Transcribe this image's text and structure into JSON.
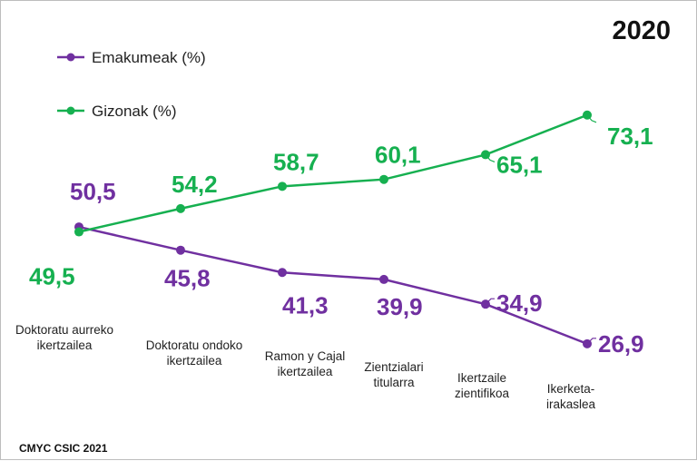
{
  "chart_data": {
    "type": "line",
    "title": "2020",
    "categories": [
      [
        "Doktoratu aurreko",
        "ikertzailea"
      ],
      [
        "Doktoratu ondoko",
        "ikertzailea"
      ],
      [
        "Ramon y Cajal",
        "ikertzailea"
      ],
      [
        "Zientzialari",
        "titularra"
      ],
      [
        "Ikertzaile",
        "zientifikoa"
      ],
      [
        "Ikerketa-",
        "irakaslea"
      ]
    ],
    "series": [
      {
        "name": "Emakumeak (%)",
        "color": "#7030a0",
        "values": [
          50.5,
          45.8,
          41.3,
          39.9,
          34.9,
          26.9
        ],
        "labels": [
          "50,5",
          "45,8",
          "41,3",
          "39,9",
          "34,9",
          "26,9"
        ]
      },
      {
        "name": "Gizonak (%)",
        "color": "#16b050",
        "values": [
          49.5,
          54.2,
          58.7,
          60.1,
          65.1,
          73.1
        ],
        "labels": [
          "49,5",
          "54,2",
          "58,7",
          "60,1",
          "65,1",
          "73,1"
        ]
      }
    ],
    "legend_position": "top-left",
    "grid": false
  },
  "source": "CMYC CSIC 2021"
}
